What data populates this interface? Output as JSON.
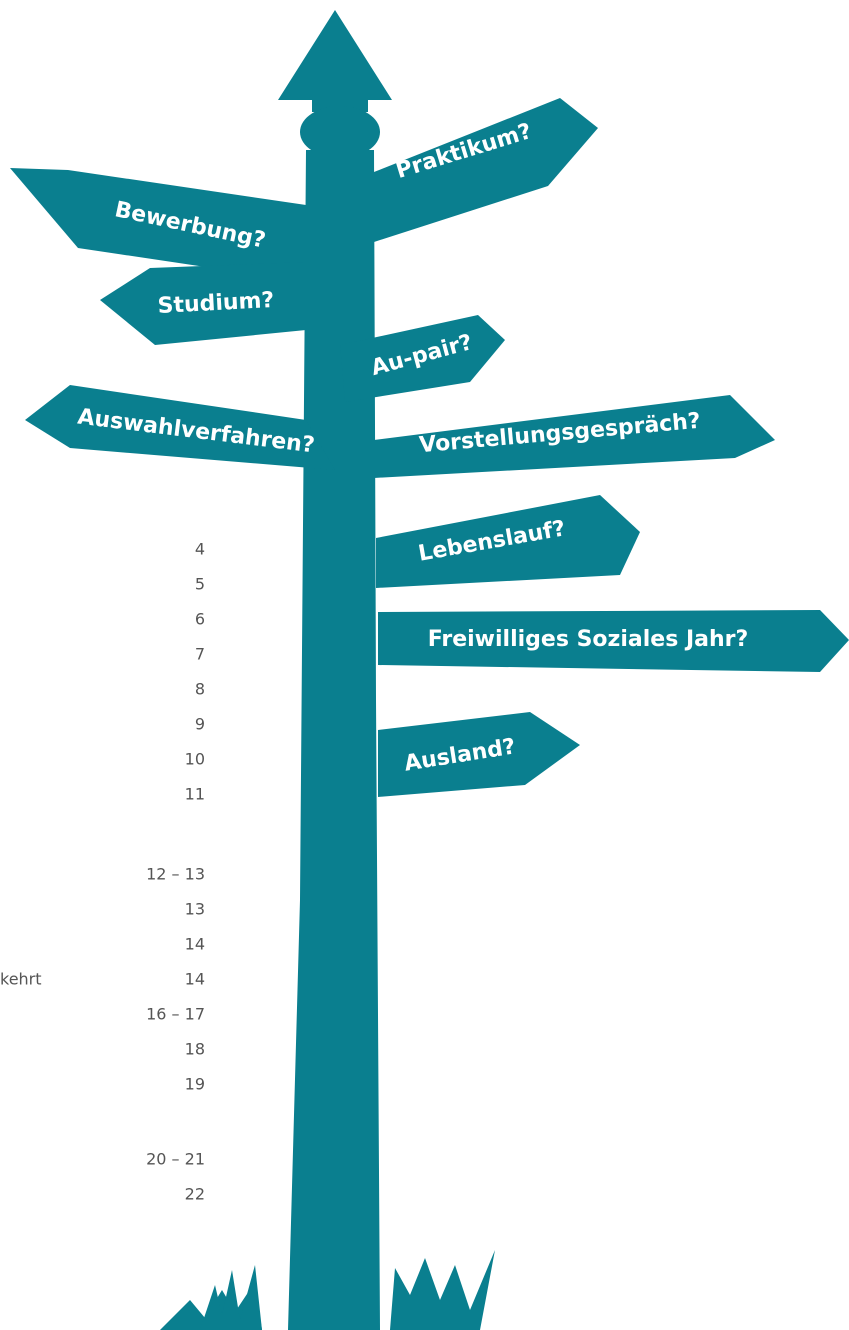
{
  "signs": [
    "Bewerbung?",
    "Praktikum?",
    "Studium?",
    "Au-pair?",
    "Auswahlverfahren?",
    "Vorstellungsgespräch?",
    "Lebenslauf?",
    "Freiwilliges Soziales Jahr?",
    "Ausland?"
  ],
  "toc": {
    "fragment": "kehrt",
    "pages": [
      "4",
      "5",
      "6",
      "7",
      "8",
      "9",
      "10",
      "11",
      "12 – 13",
      "13",
      "14",
      "14",
      "16 – 17",
      "18",
      "19",
      "20 – 21",
      "22"
    ]
  }
}
